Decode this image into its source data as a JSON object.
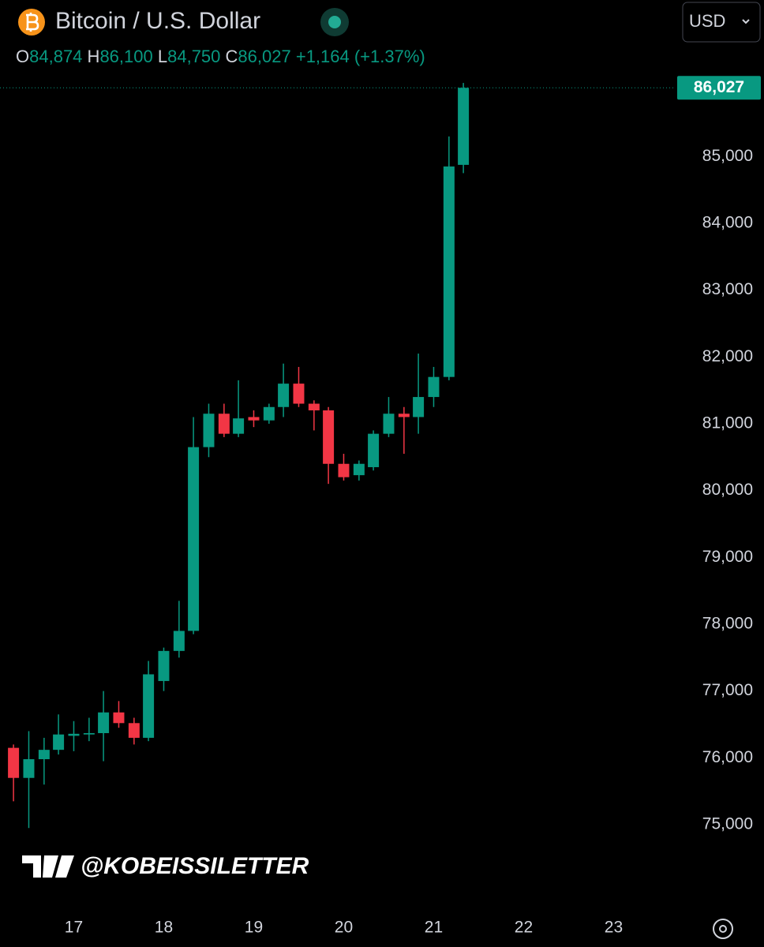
{
  "header": {
    "symbol": "Bitcoin / U.S. Dollar",
    "currency": "USD",
    "ohlc": [
      {
        "label": "O",
        "value": "84,874"
      },
      {
        "label": "H",
        "value": "86,100"
      },
      {
        "label": "L",
        "value": "84,750"
      },
      {
        "label": "C",
        "value": "86,027"
      }
    ],
    "change": "+1,164 (+1.37%)"
  },
  "watermark": "@KOBEISSILETTER",
  "chart_data": {
    "type": "candlestick",
    "up_color": "#089981",
    "down_color": "#f23645",
    "x": [
      16.33,
      16.5,
      16.67,
      16.83,
      17,
      17.17,
      17.33,
      17.5,
      17.67,
      17.83,
      18,
      18.17,
      18.33,
      18.5,
      18.67,
      18.83,
      19,
      19.17,
      19.33,
      19.5,
      19.67,
      19.83,
      20,
      20.17,
      20.33,
      20.5,
      20.67,
      20.83,
      21,
      21.17,
      21.33
    ],
    "open": [
      76150,
      75700,
      75980,
      76120,
      76330,
      76350,
      76370,
      76680,
      76520,
      76300,
      77150,
      77600,
      77900,
      80650,
      81150,
      80850,
      81100,
      81050,
      81250,
      81600,
      81300,
      81200,
      80400,
      80230,
      80350,
      80850,
      81150,
      81100,
      81400,
      81700,
      84874
    ],
    "high": [
      76200,
      76400,
      76300,
      76650,
      76550,
      76600,
      77000,
      76850,
      76600,
      77450,
      77650,
      78350,
      81100,
      81300,
      81300,
      81650,
      81200,
      81300,
      81900,
      81850,
      81350,
      81250,
      80550,
      80450,
      80900,
      81400,
      81250,
      82050,
      81850,
      85300,
      86100
    ],
    "low": [
      75350,
      74950,
      75600,
      76050,
      76100,
      76250,
      75950,
      76450,
      76200,
      76250,
      77000,
      77500,
      77850,
      80500,
      80800,
      80800,
      80950,
      81000,
      81100,
      81250,
      80900,
      80100,
      80150,
      80150,
      80300,
      80800,
      80550,
      80850,
      81250,
      81650,
      84750
    ],
    "close": [
      75700,
      75980,
      76120,
      76350,
      76360,
      76370,
      76680,
      76520,
      76300,
      77250,
      77600,
      77900,
      80650,
      81150,
      80850,
      81080,
      81050,
      81250,
      81600,
      81300,
      81200,
      80400,
      80200,
      80400,
      80850,
      81150,
      81100,
      81400,
      81700,
      84850,
      86027
    ],
    "xlim": [
      16.18,
      23.68
    ],
    "xticks": [
      17,
      18,
      19,
      20,
      21,
      22,
      23
    ],
    "ylim": [
      73760,
      86160
    ],
    "yticks": [
      {
        "value": 75000,
        "label": "75,000"
      },
      {
        "value": 76000,
        "label": "76,000"
      },
      {
        "value": 77000,
        "label": "77,000"
      },
      {
        "value": 78000,
        "label": "78,000"
      },
      {
        "value": 79000,
        "label": "79,000"
      },
      {
        "value": 80000,
        "label": "80,000"
      },
      {
        "value": 81000,
        "label": "81,000"
      },
      {
        "value": 82000,
        "label": "82,000"
      },
      {
        "value": 83000,
        "label": "83,000"
      },
      {
        "value": 84000,
        "label": "84,000"
      },
      {
        "value": 85000,
        "label": "85,000"
      }
    ],
    "last_price": {
      "value": 86027,
      "label": "86,027"
    }
  }
}
